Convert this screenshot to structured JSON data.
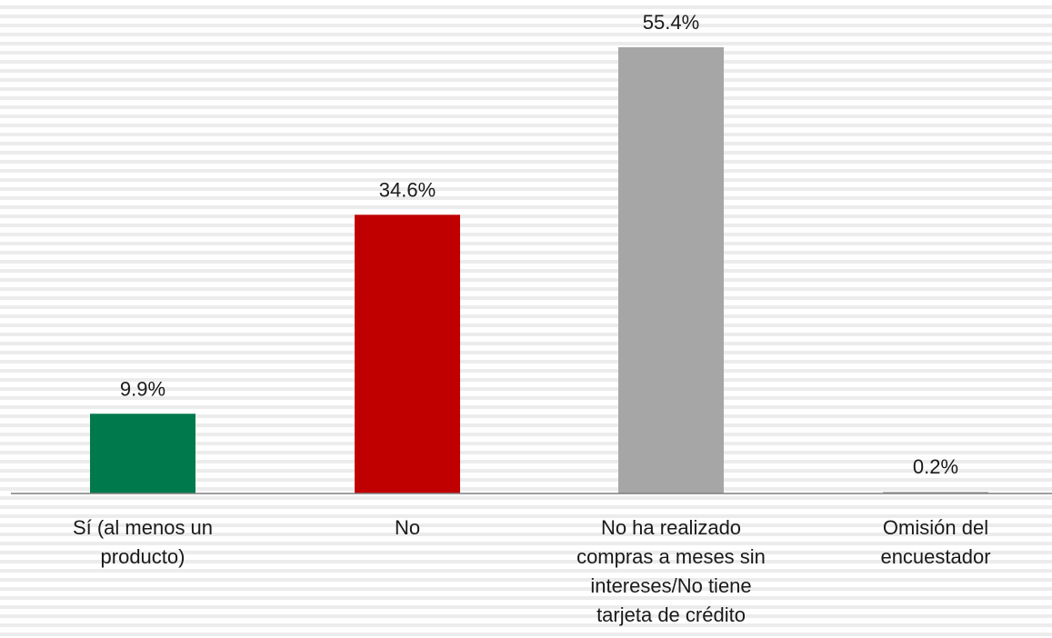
{
  "chart_data": {
    "type": "bar",
    "title": "",
    "xlabel": "",
    "ylabel": "",
    "ylim": [
      0,
      60
    ],
    "grid": false,
    "legend": "none",
    "categories": [
      [
        "Sí (al menos un",
        "producto)"
      ],
      [
        "No"
      ],
      [
        "No ha realizado",
        "compras a meses sin",
        "intereses/No tiene",
        "tarjeta de crédito"
      ],
      [
        "Omisión del",
        "encuestador"
      ]
    ],
    "values": [
      9.9,
      34.6,
      55.4,
      0.2
    ],
    "value_labels": [
      "9.9%",
      "34.6%",
      "55.4%",
      "0.2%"
    ],
    "colors": [
      "#007a4d",
      "#c00000",
      "#a6a6a6",
      "#a6a6a6"
    ]
  }
}
